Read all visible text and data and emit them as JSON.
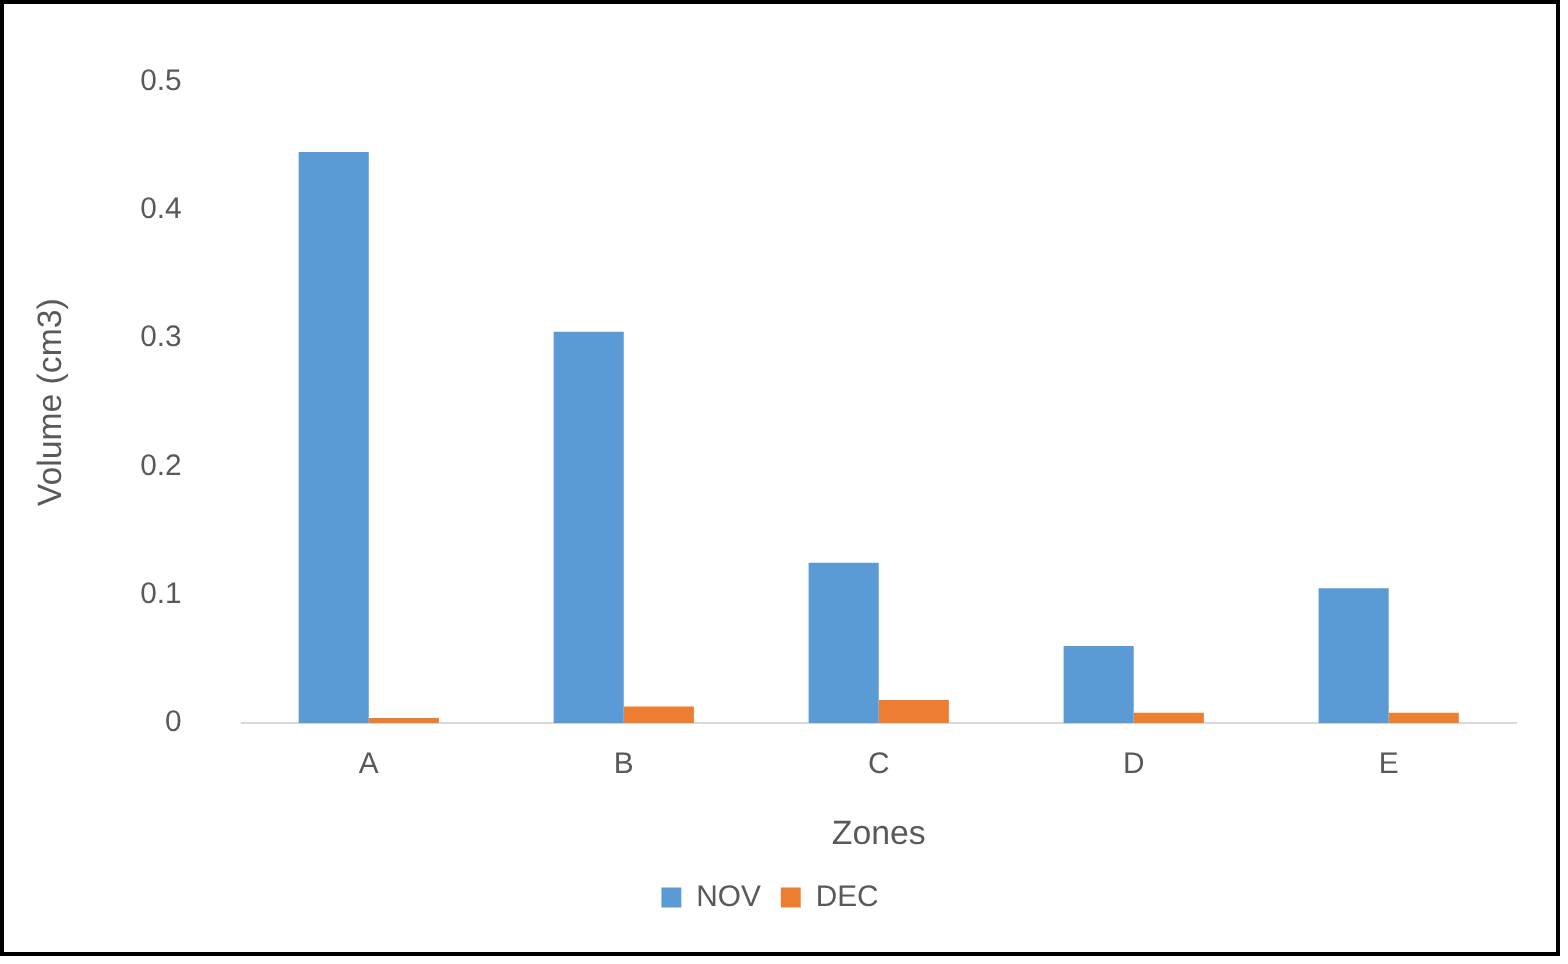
{
  "chart_data": {
    "type": "bar",
    "xlabel": "Zones",
    "ylabel": "Volume (cm3)",
    "categories": [
      "A",
      "B",
      "C",
      "D",
      "E"
    ],
    "series": [
      {
        "name": "NOV",
        "color": "#5b9bd5",
        "values": [
          0.445,
          0.305,
          0.125,
          0.06,
          0.105
        ]
      },
      {
        "name": "DEC",
        "color": "#ed7d31",
        "values": [
          0.004,
          0.013,
          0.018,
          0.008,
          0.008
        ]
      }
    ],
    "ylim": [
      0,
      0.5
    ],
    "yticks": [
      0,
      0.1,
      0.2,
      0.3,
      0.4,
      0.5
    ],
    "grid": false,
    "legend": "bottom"
  }
}
